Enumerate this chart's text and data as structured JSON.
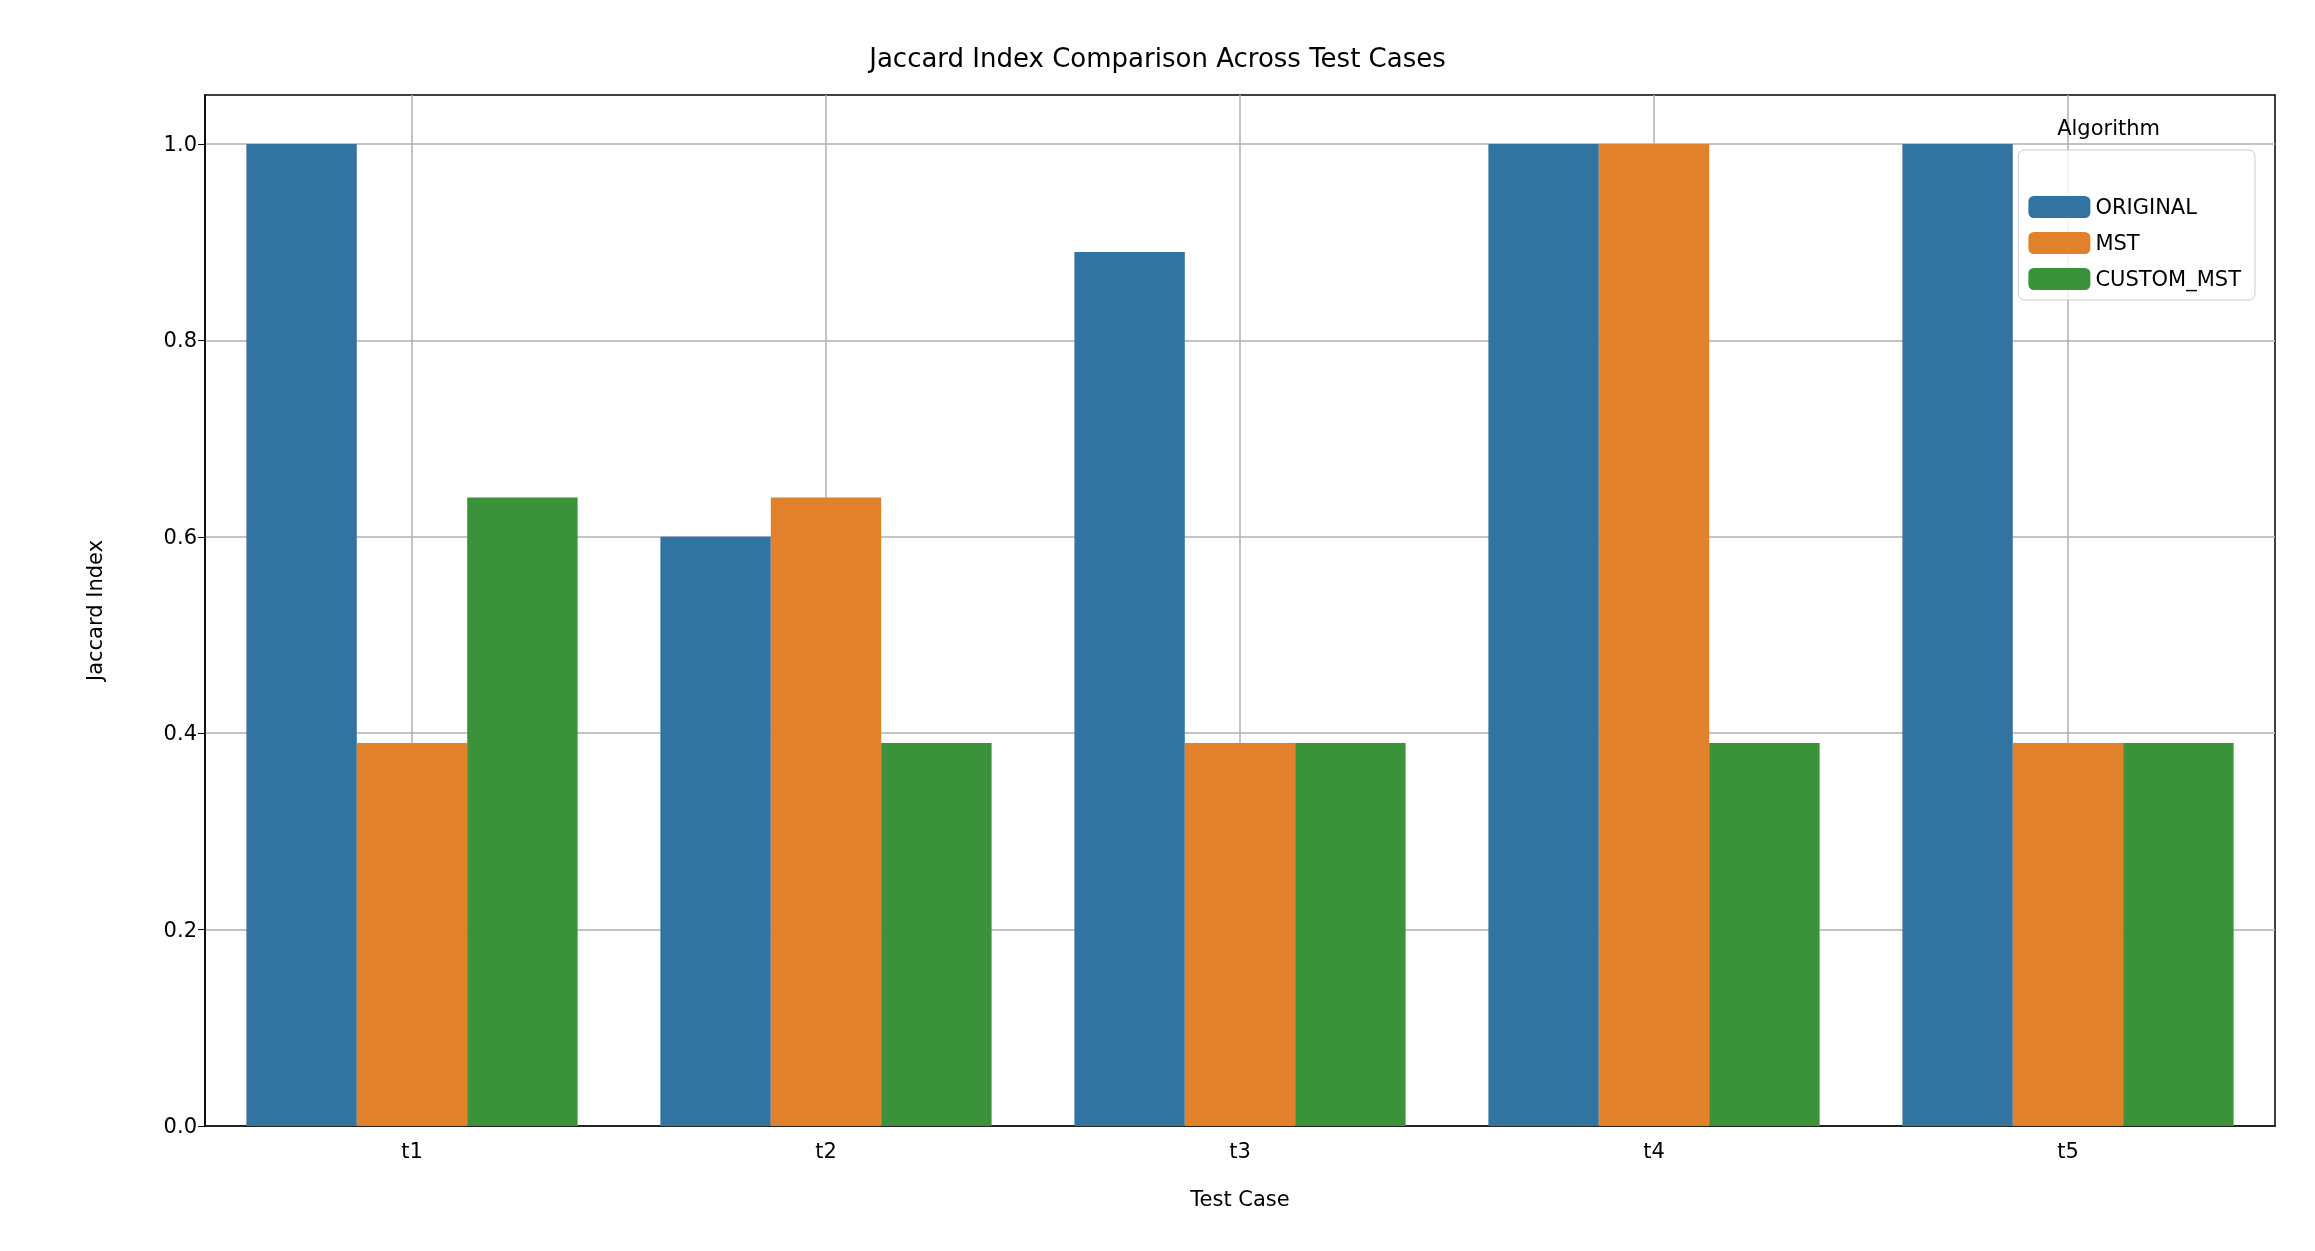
{
  "chart_data": {
    "type": "bar",
    "title": "Jaccard Index Comparison Across Test Cases",
    "xlabel": "Test Case",
    "ylabel": "Jaccard Index",
    "legend_title": "Algorithm",
    "categories": [
      "t1",
      "t2",
      "t3",
      "t4",
      "t5"
    ],
    "series": [
      {
        "name": "ORIGINAL",
        "color": "#3274a1",
        "values": [
          1.0,
          0.6,
          0.89,
          1.0,
          1.0
        ]
      },
      {
        "name": "MST",
        "color": "#e1812c",
        "values": [
          0.39,
          0.64,
          0.39,
          1.0,
          0.39
        ]
      },
      {
        "name": "CUSTOM_MST",
        "color": "#3a923a",
        "values": [
          0.64,
          0.39,
          0.39,
          0.39,
          0.39
        ]
      }
    ],
    "ylim": [
      0,
      1.05
    ],
    "yticks": [
      {
        "value": 0,
        "label": "0.0"
      },
      0.2,
      0.4,
      0.6,
      0.8,
      {
        "value": 1,
        "label": "1.0"
      }
    ],
    "grid": true,
    "legend": "top right"
  }
}
